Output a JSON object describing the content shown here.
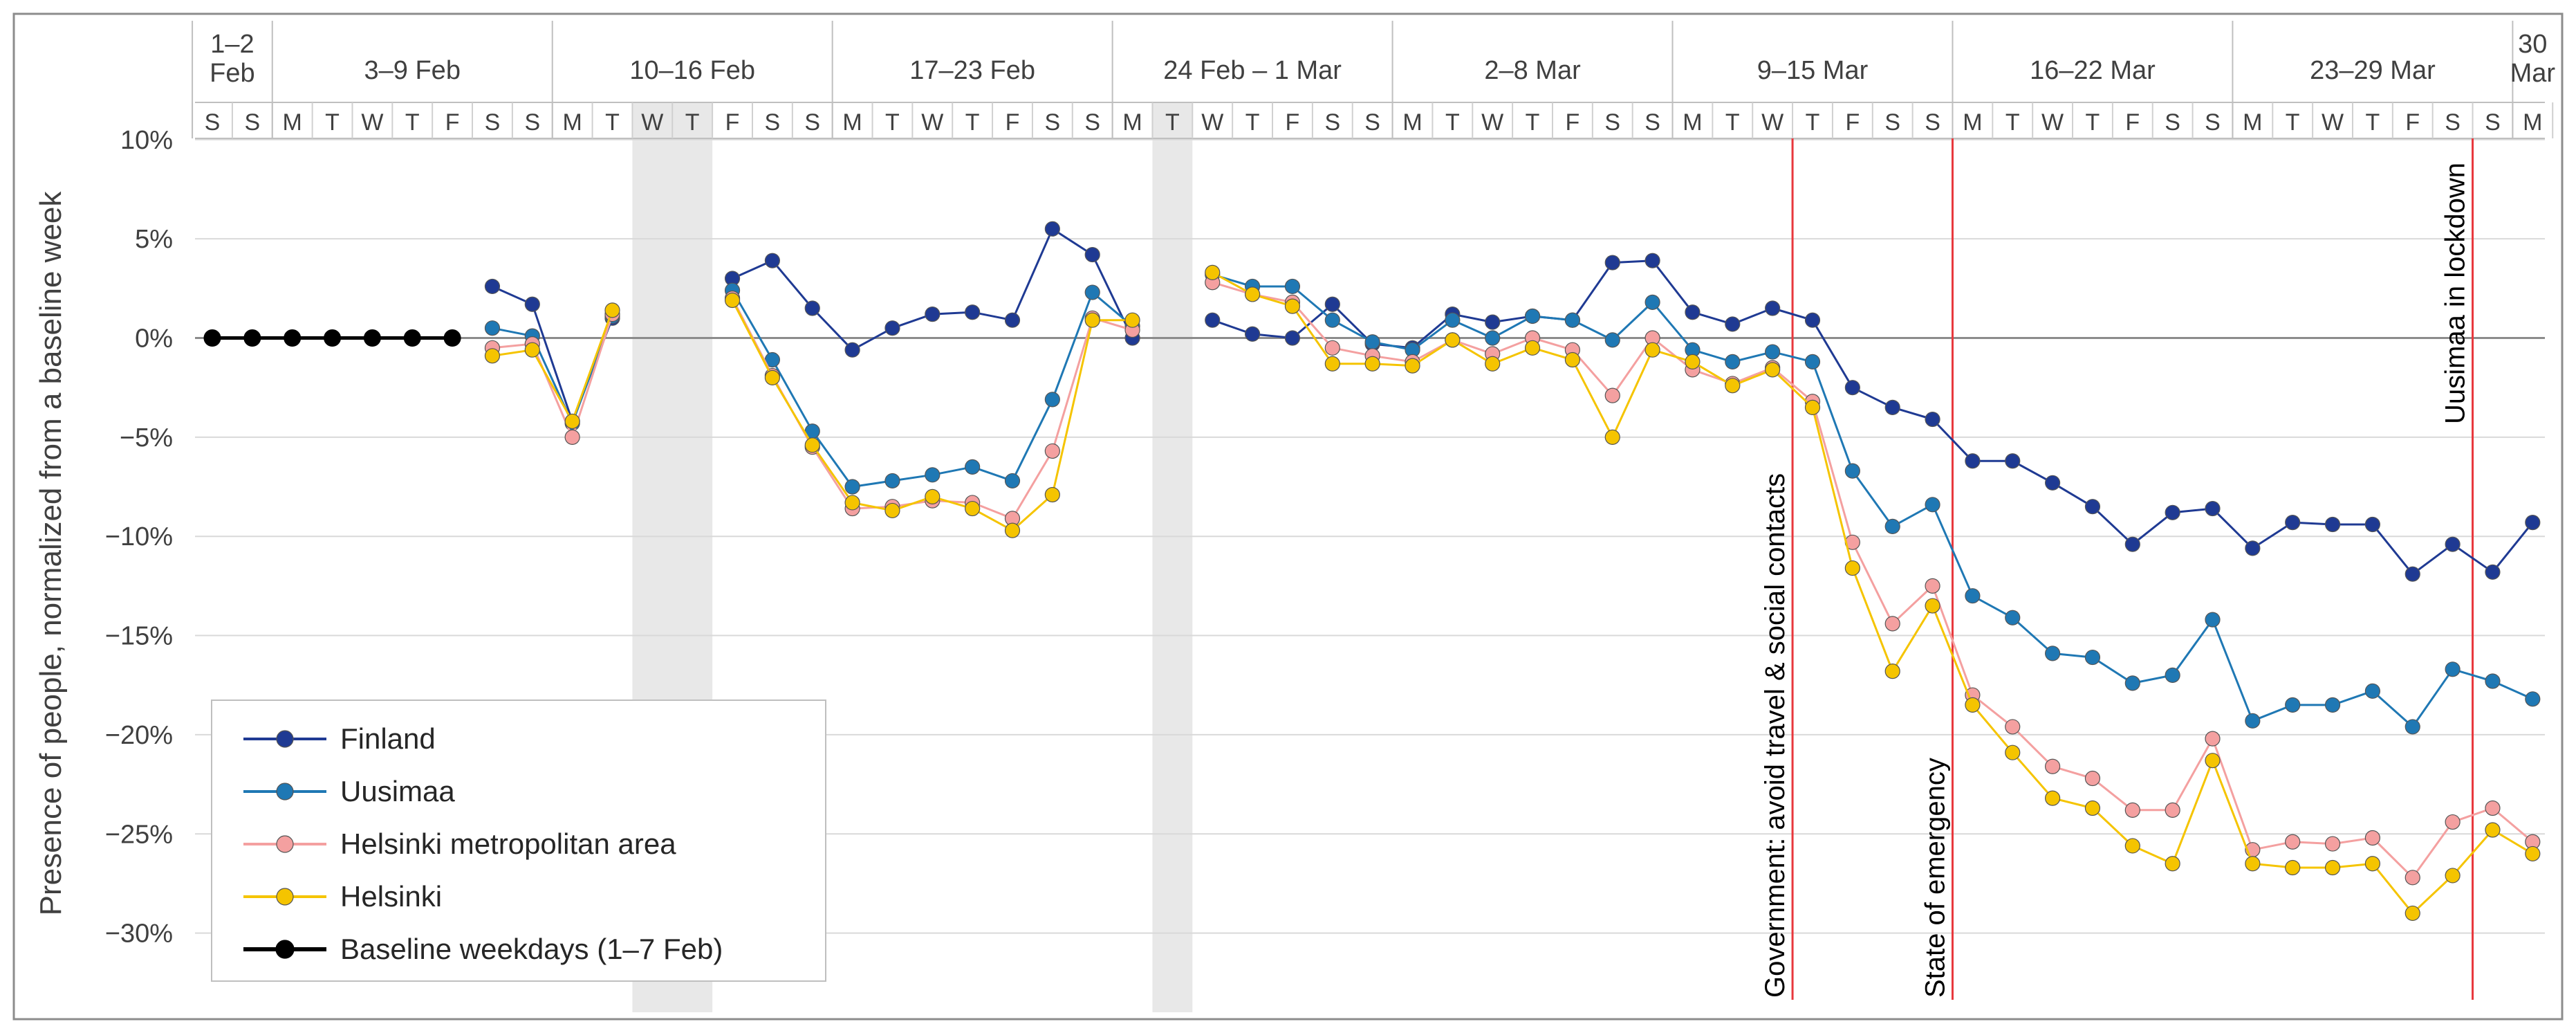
{
  "chart_data": {
    "type": "line",
    "title": "",
    "xlabel": "",
    "ylabel": "Presence of people, normalized from a baseline week",
    "ylim": [
      -33,
      12
    ],
    "yticks": [
      10,
      5,
      0,
      -5,
      -10,
      -15,
      -20,
      -25,
      -30
    ],
    "ytick_labels": [
      "10%",
      "5%",
      "0%",
      "−5%",
      "−10%",
      "−15%",
      "−20%",
      "−25%",
      "−30%"
    ],
    "day_letters": [
      "S",
      "S",
      "M",
      "T",
      "W",
      "T",
      "F",
      "S",
      "S",
      "M",
      "T",
      "W",
      "T",
      "F",
      "S",
      "S",
      "M",
      "T",
      "W",
      "T",
      "F",
      "S",
      "S",
      "M",
      "T",
      "W",
      "T",
      "F",
      "S",
      "S",
      "M",
      "T",
      "W",
      "T",
      "F",
      "S",
      "S",
      "M",
      "T",
      "W",
      "T",
      "F",
      "S",
      "S",
      "M",
      "T",
      "W",
      "T",
      "F",
      "S",
      "S",
      "M",
      "T",
      "W",
      "T",
      "F",
      "S",
      "S",
      "M"
    ],
    "week_labels": [
      {
        "text": "1–2 Feb",
        "lines": [
          "1–2",
          "Feb"
        ],
        "start_day": 0,
        "end_day": 1
      },
      {
        "text": "3–9 Feb",
        "lines": [
          "3–9 Feb"
        ],
        "start_day": 2,
        "end_day": 8
      },
      {
        "text": "10–16 Feb",
        "lines": [
          "10–16 Feb"
        ],
        "start_day": 9,
        "end_day": 15
      },
      {
        "text": "17–23 Feb",
        "lines": [
          "17–23 Feb"
        ],
        "start_day": 16,
        "end_day": 22
      },
      {
        "text": "24 Feb – 1 Mar",
        "lines": [
          "24 Feb – 1 Mar"
        ],
        "start_day": 23,
        "end_day": 29
      },
      {
        "text": "2–8 Mar",
        "lines": [
          "2–8 Mar"
        ],
        "start_day": 30,
        "end_day": 36
      },
      {
        "text": "9–15 Mar",
        "lines": [
          "9–15 Mar"
        ],
        "start_day": 37,
        "end_day": 43
      },
      {
        "text": "16–22 Mar",
        "lines": [
          "16–22 Mar"
        ],
        "start_day": 44,
        "end_day": 50
      },
      {
        "text": "23–29 Mar",
        "lines": [
          "23–29 Mar"
        ],
        "start_day": 51,
        "end_day": 57
      },
      {
        "text": "30 Mar",
        "lines": [
          "30",
          "Mar"
        ],
        "start_day": 58,
        "end_day": 58
      }
    ],
    "missing_data_bands": [
      [
        11,
        12
      ],
      [
        24,
        24
      ]
    ],
    "series": [
      {
        "name": "Finland",
        "color": "#1f3a93",
        "marker_color": "#1f3a93",
        "values": [
          null,
          null,
          null,
          null,
          null,
          null,
          null,
          2.6,
          1.7,
          -4.2,
          1.0,
          null,
          null,
          3.0,
          3.9,
          1.5,
          -0.6,
          0.5,
          1.2,
          1.3,
          0.9,
          5.5,
          4.2,
          0.0,
          null,
          0.9,
          0.2,
          0.0,
          1.7,
          -0.3,
          -0.5,
          1.2,
          0.8,
          1.1,
          0.9,
          3.8,
          3.9,
          1.3,
          0.7,
          1.5,
          0.9,
          -2.5,
          -3.5,
          -4.1,
          -6.2,
          -6.2,
          -7.3,
          -8.5,
          -10.4,
          -8.8,
          -8.6,
          -10.6,
          -9.3,
          -9.4,
          -9.4,
          -11.9,
          -10.4,
          -11.8,
          -9.3
        ]
      },
      {
        "name": "Uusimaa",
        "color": "#1f78b4",
        "marker_color": "#1f78b4",
        "values": [
          null,
          null,
          null,
          null,
          null,
          null,
          null,
          0.5,
          0.1,
          -4.3,
          1.1,
          null,
          null,
          2.4,
          -1.1,
          -4.7,
          -7.5,
          -7.2,
          -6.9,
          -6.5,
          -7.2,
          -3.1,
          2.3,
          0.6,
          null,
          3.2,
          2.6,
          2.6,
          0.9,
          -0.2,
          -0.6,
          0.9,
          0.0,
          1.1,
          0.9,
          -0.1,
          1.8,
          -0.6,
          -1.2,
          -0.7,
          -1.2,
          -6.7,
          -9.5,
          -8.4,
          -13.0,
          -14.1,
          -15.9,
          -16.1,
          -17.4,
          -17.0,
          -14.2,
          -19.3,
          -18.5,
          -18.5,
          -17.8,
          -19.6,
          -16.7,
          -17.3,
          -18.2
        ]
      },
      {
        "name": "Helsinki metropolitan area",
        "color": "#f4a0a0",
        "marker_color": "#f4a0a0",
        "values": [
          null,
          null,
          null,
          null,
          null,
          null,
          null,
          -0.5,
          -0.3,
          -5.0,
          1.2,
          null,
          null,
          2.0,
          -1.9,
          -5.5,
          -8.6,
          -8.5,
          -8.2,
          -8.3,
          -9.1,
          -5.7,
          1.0,
          0.4,
          null,
          2.8,
          2.2,
          1.8,
          -0.5,
          -0.9,
          -1.2,
          -0.1,
          -0.8,
          0.0,
          -0.6,
          -2.9,
          0.0,
          -1.6,
          -2.3,
          -1.5,
          -3.2,
          -10.3,
          -14.4,
          -12.5,
          -18.0,
          -19.6,
          -21.6,
          -22.2,
          -23.8,
          -23.8,
          -20.2,
          -25.8,
          -25.4,
          -25.5,
          -25.2,
          -27.2,
          -24.4,
          -23.7,
          -25.4
        ]
      },
      {
        "name": "Helsinki",
        "color": "#f5c400",
        "marker_color": "#f5c400",
        "values": [
          null,
          null,
          null,
          null,
          null,
          null,
          null,
          -0.9,
          -0.6,
          -4.2,
          1.4,
          null,
          null,
          1.9,
          -2.0,
          -5.4,
          -8.3,
          -8.7,
          -8.0,
          -8.6,
          -9.7,
          -7.9,
          0.9,
          0.9,
          null,
          3.3,
          2.2,
          1.6,
          -1.3,
          -1.3,
          -1.4,
          -0.1,
          -1.3,
          -0.5,
          -1.1,
          -5.0,
          -0.6,
          -1.2,
          -2.4,
          -1.6,
          -3.5,
          -11.6,
          -16.8,
          -13.5,
          -18.5,
          -20.9,
          -23.2,
          -23.7,
          -25.6,
          -26.5,
          -21.3,
          -26.5,
          -26.7,
          -26.7,
          -26.5,
          -29.0,
          -27.1,
          -24.8,
          -26.0
        ]
      },
      {
        "name": "Baseline weekdays (1–7 Feb)",
        "color": "#000000",
        "marker_color": "#000000",
        "values": [
          0,
          0,
          0,
          0,
          0,
          0,
          0,
          null,
          null,
          null,
          null,
          null,
          null,
          null,
          null,
          null,
          null,
          null,
          null,
          null,
          null,
          null,
          null,
          null,
          null,
          null,
          null,
          null,
          null,
          null,
          null,
          null,
          null,
          null,
          null,
          null,
          null,
          null,
          null,
          null,
          null,
          null,
          null,
          null,
          null,
          null,
          null,
          null,
          null,
          null,
          null,
          null,
          null,
          null,
          null,
          null,
          null,
          null,
          null
        ]
      }
    ],
    "annotations": [
      {
        "text": "Government: avoid travel & social contacts",
        "day": 39.5
      },
      {
        "text": "State of emergency",
        "day": 43.5
      },
      {
        "text": "Uusimaa in lockdown",
        "day": 56.5
      }
    ],
    "legend_position": "bottom-left",
    "grid": true
  }
}
